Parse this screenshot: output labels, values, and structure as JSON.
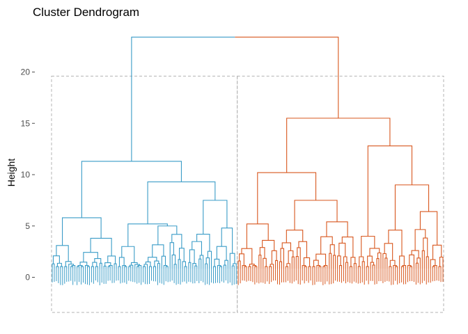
{
  "chart_data": {
    "type": "dendrogram",
    "title": "Cluster Dendrogram",
    "xlabel": "",
    "ylabel": "Height",
    "ylim": [
      -3.4,
      25
    ],
    "yticks": [
      0,
      5,
      10,
      15,
      20
    ],
    "grid": false,
    "leaf_count": 190,
    "clusters": [
      {
        "name": "",
        "color": "#3A9CC7",
        "leaf_count": 90,
        "root_height": 11.3,
        "subclusters": [
          {
            "height": 5.8,
            "leaf_count": 32,
            "groups": [
              {
                "height": 3.1,
                "leaf_count": 12
              },
              {
                "height": 3.8,
                "leaf_count": 20
              }
            ]
          },
          {
            "height": 9.3,
            "leaf_count": 58,
            "groups": [
              {
                "height": 5.2,
                "leaf_count": 34,
                "groups": [
                  {
                    "height": 3.0,
                    "leaf_count": 12
                  },
                  {
                    "height": 5.0,
                    "leaf_count": 22
                  }
                ]
              },
              {
                "height": 7.5,
                "leaf_count": 24,
                "groups": [
                  {
                    "height": 4.2,
                    "leaf_count": 12
                  },
                  {
                    "height": 4.8,
                    "leaf_count": 12
                  }
                ]
              }
            ]
          }
        ]
      },
      {
        "name": "",
        "color": "#D8571E",
        "leaf_count": 100,
        "root_height": 15.5,
        "subclusters": [
          {
            "height": 10.2,
            "leaf_count": 58,
            "groups": [
              {
                "height": 5.2,
                "leaf_count": 20,
                "groups": [
                  {
                    "height": 2.8,
                    "leaf_count": 10
                  },
                  {
                    "height": 3.6,
                    "leaf_count": 10
                  }
                ]
              },
              {
                "height": 7.5,
                "leaf_count": 38,
                "groups": [
                  {
                    "height": 4.6,
                    "leaf_count": 16
                  },
                  {
                    "height": 5.4,
                    "leaf_count": 22
                  }
                ]
              }
            ]
          },
          {
            "height": 12.8,
            "leaf_count": 42,
            "groups": [
              {
                "height": 4.0,
                "leaf_count": 12
              },
              {
                "height": 9.0,
                "leaf_count": 30,
                "groups": [
                  {
                    "height": 4.6,
                    "leaf_count": 12
                  },
                  {
                    "height": 6.4,
                    "leaf_count": 18
                  }
                ]
              }
            ]
          }
        ]
      }
    ],
    "root_height": 23.4,
    "cluster_boxes": true,
    "leaf_labels_legible": false
  }
}
